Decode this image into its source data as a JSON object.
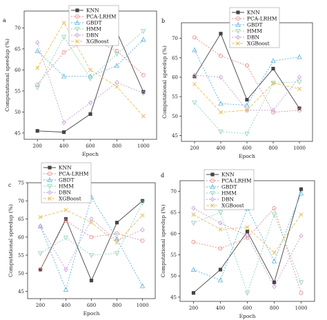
{
  "chart_data": [
    {
      "type": "line",
      "panel_label": "a",
      "xlabel": "Epoch",
      "ylabel": "Computational speedup (%)",
      "x": [
        200,
        400,
        600,
        800,
        1000
      ],
      "xlim": [
        100,
        1100
      ],
      "ylim": [
        43.5,
        74
      ],
      "yticks": [
        45,
        50,
        55,
        60,
        65,
        70
      ],
      "legend_position": "top-center",
      "series": [
        {
          "name": "KNN",
          "color": "#444444",
          "dash": "",
          "marker": "square",
          "values": [
            45.5,
            45.2,
            49.5,
            69.0,
            54.8
          ]
        },
        {
          "name": "PCA-LRHM",
          "color": "#e58a8a",
          "dash": "2,2",
          "marker": "circle",
          "values": [
            56.5,
            64.2,
            67.5,
            64.5,
            58.8
          ]
        },
        {
          "name": "GBDT",
          "color": "#5bb3d9",
          "dash": "2,2",
          "marker": "triangle-up",
          "values": [
            64.5,
            58.5,
            58.5,
            61.0,
            67.2
          ]
        },
        {
          "name": "HMM",
          "color": "#8ed1b7",
          "dash": "2,2",
          "marker": "triangle-down",
          "values": [
            55.8,
            67.8,
            58.0,
            63.8,
            69.2
          ]
        },
        {
          "name": "DBN",
          "color": "#c39bd3",
          "dash": "2,2",
          "marker": "diamond",
          "values": [
            66.5,
            47.5,
            52.2,
            57.0,
            54.5
          ]
        },
        {
          "name": "XGBoost",
          "color": "#e8c25a",
          "dash": "4,2",
          "marker": "x",
          "values": [
            60.5,
            71.2,
            60.0,
            56.0,
            49.0
          ]
        }
      ]
    },
    {
      "type": "line",
      "panel_label": "b",
      "xlabel": "Epoch",
      "ylabel": "Computational speedup (%)",
      "x": [
        200,
        400,
        600,
        800,
        1000
      ],
      "xlim": [
        100,
        1100
      ],
      "ylim": [
        43.5,
        74
      ],
      "yticks": [
        45,
        50,
        55,
        60,
        65,
        70
      ],
      "legend_position": "top-right",
      "series": [
        {
          "name": "KNN",
          "color": "#444444",
          "dash": "",
          "marker": "square",
          "values": [
            60.2,
            71.2,
            54.2,
            62.2,
            52.0
          ]
        },
        {
          "name": "PCA-LRHM",
          "color": "#e58a8a",
          "dash": "2,2",
          "marker": "circle",
          "values": [
            70.2,
            65.5,
            63.0,
            51.0,
            51.5
          ]
        },
        {
          "name": "GBDT",
          "color": "#5bb3d9",
          "dash": "2,2",
          "marker": "triangle-up",
          "values": [
            67.0,
            53.2,
            52.8,
            64.2,
            65.2
          ]
        },
        {
          "name": "HMM",
          "color": "#8ed1b7",
          "dash": "2,2",
          "marker": "triangle-down",
          "values": [
            53.5,
            46.0,
            45.5,
            58.5,
            58.8
          ]
        },
        {
          "name": "DBN",
          "color": "#c39bd3",
          "dash": "2,2",
          "marker": "diamond",
          "values": [
            60.5,
            60.0,
            51.5,
            51.5,
            60.0
          ]
        },
        {
          "name": "XGBoost",
          "color": "#e8c25a",
          "dash": "4,2",
          "marker": "x",
          "values": [
            58.2,
            51.0,
            51.5,
            58.5,
            57.0
          ]
        }
      ]
    },
    {
      "type": "line",
      "panel_label": "c",
      "xlabel": "Epoch",
      "ylabel": "Computational speedup (%)",
      "x": [
        200,
        400,
        600,
        800,
        1000
      ],
      "xlim": [
        100,
        1100
      ],
      "ylim": [
        43,
        75
      ],
      "yticks": [
        45,
        50,
        55,
        60,
        65,
        70,
        75
      ],
      "legend_position": "top-center",
      "series": [
        {
          "name": "KNN",
          "color": "#444444",
          "dash": "",
          "marker": "square",
          "values": [
            51.0,
            65.0,
            48.0,
            64.0,
            70.0
          ]
        },
        {
          "name": "PCA-LRHM",
          "color": "#e58a8a",
          "dash": "2,2",
          "marker": "circle",
          "values": [
            51.0,
            64.5,
            60.0,
            61.0,
            59.0
          ]
        },
        {
          "name": "GBDT",
          "color": "#5bb3d9",
          "dash": "2,2",
          "marker": "triangle-up",
          "values": [
            63.0,
            45.5,
            71.0,
            59.5,
            46.5
          ]
        },
        {
          "name": "HMM",
          "color": "#8ed1b7",
          "dash": "2,2",
          "marker": "triangle-down",
          "values": [
            55.5,
            59.8,
            55.0,
            55.5,
            69.5
          ]
        },
        {
          "name": "DBN",
          "color": "#c39bd3",
          "dash": "2,2",
          "marker": "diamond",
          "values": [
            63.0,
            51.0,
            65.0,
            59.0,
            62.0
          ]
        },
        {
          "name": "XGBoost",
          "color": "#e8c25a",
          "dash": "4,2",
          "marker": "x",
          "values": [
            65.5,
            67.5,
            64.0,
            58.5,
            66.0
          ]
        }
      ]
    },
    {
      "type": "line",
      "panel_label": "d",
      "xlabel": "Epoch",
      "ylabel": "Computational speedup (%)",
      "x": [
        200,
        400,
        600,
        800,
        1000
      ],
      "xlim": [
        100,
        1100
      ],
      "ylim": [
        44,
        72.5
      ],
      "yticks": [
        45,
        50,
        55,
        60,
        65,
        70
      ],
      "legend_position": "top-right",
      "series": [
        {
          "name": "KNN",
          "color": "#444444",
          "dash": "",
          "marker": "square",
          "values": [
            46.0,
            51.5,
            60.5,
            48.5,
            70.5
          ]
        },
        {
          "name": "PCA-LRHM",
          "color": "#e58a8a",
          "dash": "2,2",
          "marker": "circle",
          "values": [
            58.0,
            56.5,
            59.0,
            66.0,
            46.0
          ]
        },
        {
          "name": "GBDT",
          "color": "#5bb3d9",
          "dash": "2,2",
          "marker": "triangle-up",
          "values": [
            51.5,
            49.0,
            66.0,
            53.5,
            69.5
          ]
        },
        {
          "name": "HMM",
          "color": "#8ed1b7",
          "dash": "2,2",
          "marker": "triangle-down",
          "values": [
            62.5,
            65.0,
            46.0,
            64.5,
            48.5
          ]
        },
        {
          "name": "DBN",
          "color": "#c39bd3",
          "dash": "2,2",
          "marker": "diamond",
          "values": [
            66.0,
            62.5,
            59.5,
            47.5,
            59.5
          ]
        },
        {
          "name": "XGBoost",
          "color": "#e8c25a",
          "dash": "4,2",
          "marker": "x",
          "values": [
            64.5,
            61.0,
            61.5,
            55.5,
            64.5
          ]
        }
      ]
    }
  ]
}
